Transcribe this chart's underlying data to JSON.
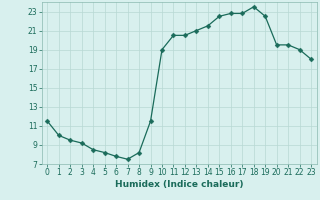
{
  "x": [
    0,
    1,
    2,
    3,
    4,
    5,
    6,
    7,
    8,
    9,
    10,
    11,
    12,
    13,
    14,
    15,
    16,
    17,
    18,
    19,
    20,
    21,
    22,
    23
  ],
  "y": [
    11.5,
    10.0,
    9.5,
    9.2,
    8.5,
    8.2,
    7.8,
    7.5,
    8.2,
    11.5,
    19.0,
    20.5,
    20.5,
    21.0,
    21.5,
    22.5,
    22.8,
    22.8,
    23.5,
    22.5,
    19.5,
    19.5,
    19.0,
    18.0
  ],
  "line_color": "#1a6b5a",
  "marker": "D",
  "markersize": 2.5,
  "bg_color": "#d8f0ee",
  "grid_color": "#b8d8d4",
  "xlabel": "Humidex (Indice chaleur)",
  "xlim": [
    -0.5,
    23.5
  ],
  "ylim": [
    7,
    24
  ],
  "yticks": [
    7,
    9,
    11,
    13,
    15,
    17,
    19,
    21,
    23
  ],
  "xtick_labels": [
    "0",
    "1",
    "2",
    "3",
    "4",
    "5",
    "6",
    "7",
    "8",
    "9",
    "10",
    "11",
    "12",
    "13",
    "14",
    "15",
    "16",
    "17",
    "18",
    "19",
    "20",
    "21",
    "22",
    "23"
  ],
  "tick_fontsize": 5.5,
  "xlabel_fontsize": 6.5
}
